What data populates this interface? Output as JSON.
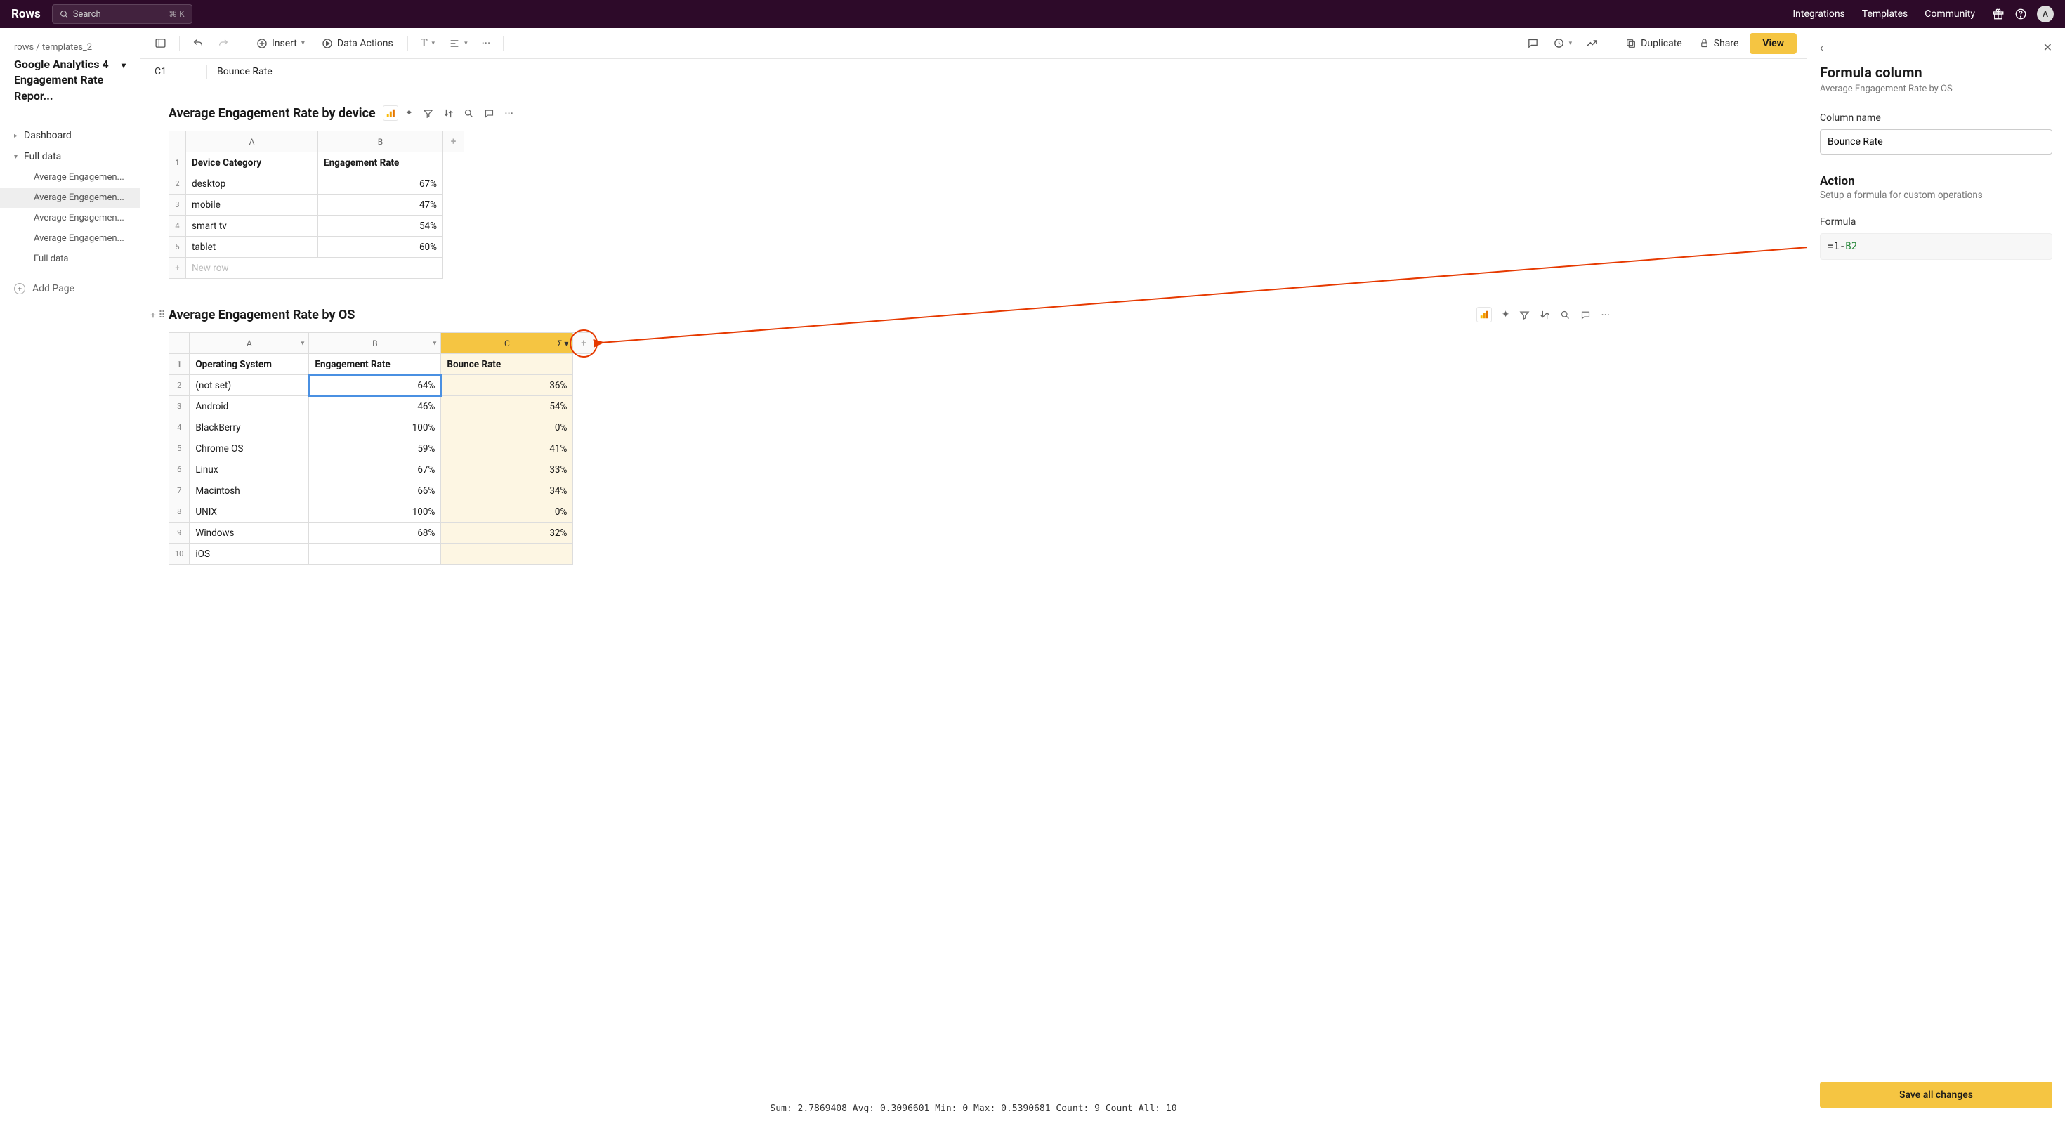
{
  "topbar": {
    "logo": "Rows",
    "search_placeholder": "Search",
    "search_shortcut": "⌘ K",
    "links": [
      "Integrations",
      "Templates",
      "Community"
    ],
    "avatar_initial": "A"
  },
  "sidebar": {
    "breadcrumb_a": "rows",
    "breadcrumb_b": "templates_2",
    "doc_title": "Google Analytics 4 Engagement Rate Repor...",
    "items": [
      {
        "label": "Dashboard",
        "expandable": true,
        "expanded": false,
        "active": false
      },
      {
        "label": "Full data",
        "expandable": true,
        "expanded": true,
        "active": false
      }
    ],
    "nested": [
      {
        "label": "Average Engagemen...",
        "active": false
      },
      {
        "label": "Average Engagemen...",
        "active": true
      },
      {
        "label": "Average Engagemen...",
        "active": false
      },
      {
        "label": "Average Engagemen...",
        "active": false
      },
      {
        "label": "Full data",
        "active": false
      }
    ],
    "add_page": "Add Page"
  },
  "toolbar": {
    "insert": "Insert",
    "data_actions": "Data Actions",
    "duplicate": "Duplicate",
    "share": "Share",
    "view": "View"
  },
  "formula_bar": {
    "cell": "C1",
    "value": "Bounce Rate"
  },
  "table1": {
    "title": "Average Engagement Rate by device",
    "columns": [
      "A",
      "B"
    ],
    "headers": [
      "Device Category",
      "Engagement Rate"
    ],
    "rows": [
      [
        "desktop",
        "67%"
      ],
      [
        "mobile",
        "47%"
      ],
      [
        "smart tv",
        "54%"
      ],
      [
        "tablet",
        "60%"
      ]
    ],
    "new_row": "New row"
  },
  "table2": {
    "title": "Average Engagement Rate by OS",
    "columns": [
      "A",
      "B",
      "C"
    ],
    "headers": [
      "Operating System",
      "Engagement Rate",
      "Bounce Rate"
    ],
    "rows": [
      [
        "(not set)",
        "64%",
        "36%"
      ],
      [
        "Android",
        "46%",
        "54%"
      ],
      [
        "BlackBerry",
        "100%",
        "0%"
      ],
      [
        "Chrome OS",
        "59%",
        "41%"
      ],
      [
        "Linux",
        "67%",
        "33%"
      ],
      [
        "Macintosh",
        "66%",
        "34%"
      ],
      [
        "UNIX",
        "100%",
        "0%"
      ],
      [
        "Windows",
        "68%",
        "32%"
      ],
      [
        "iOS",
        "",
        ""
      ]
    ]
  },
  "status": "Sum: 2.7869408 Avg: 0.3096601 Min: 0 Max: 0.5390681 Count: 9 Count All: 10",
  "panel": {
    "title": "Formula column",
    "subtitle": "Average Engagement Rate by OS",
    "col_name_label": "Column name",
    "col_name_value": "Bounce Rate",
    "action_h": "Action",
    "action_s": "Setup a formula for custom operations",
    "formula_label": "Formula",
    "formula_prefix": "=1-",
    "formula_ref": "B2",
    "save": "Save all changes"
  },
  "colors": {
    "topbar_bg": "#2d0a29",
    "accent": "#f5c542",
    "highlight_col_bg": "#fdf6e3",
    "annotation": "#e63900"
  }
}
